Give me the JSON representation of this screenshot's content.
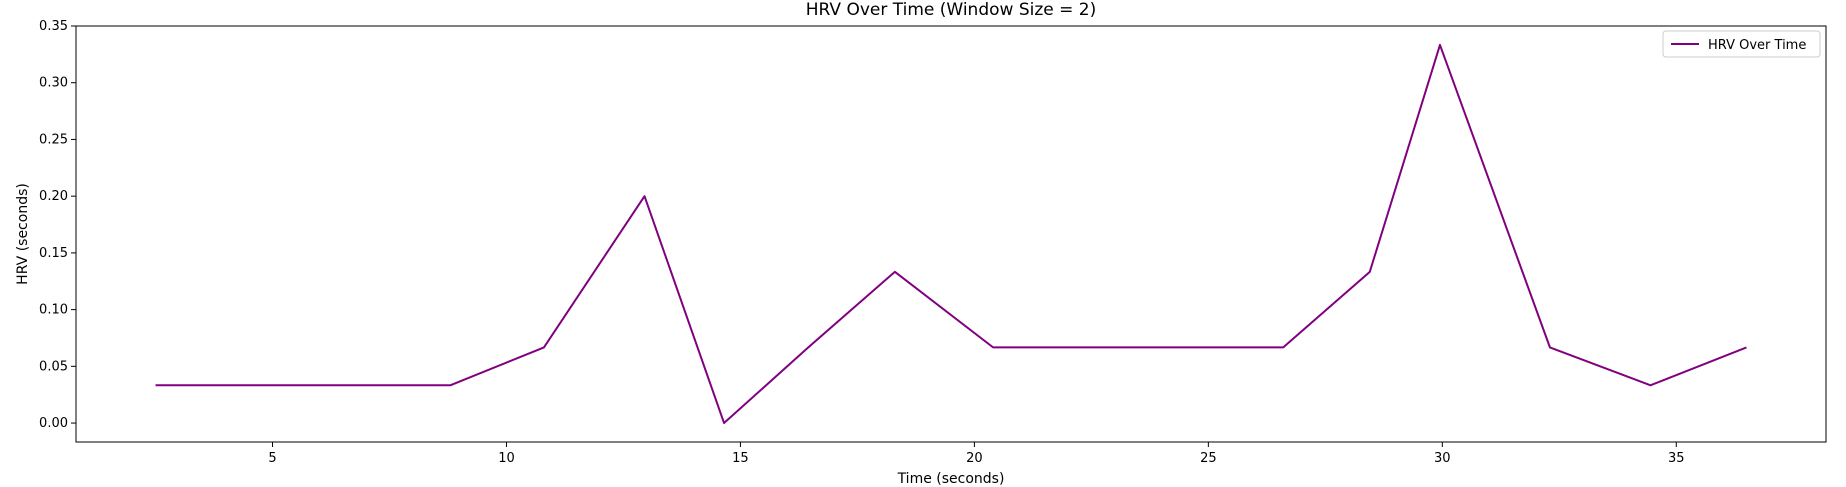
{
  "chart_data": {
    "type": "line",
    "title": "HRV Over Time (Window Size = 2)",
    "xlabel": "Time (seconds)",
    "ylabel": "HRV (seconds)",
    "xlim": [
      0.8,
      38.2
    ],
    "ylim": [
      -0.0167,
      0.35
    ],
    "xticks": [
      5,
      10,
      15,
      20,
      25,
      30,
      35
    ],
    "xtick_labels": [
      "5",
      "10",
      "15",
      "20",
      "25",
      "30",
      "35"
    ],
    "yticks": [
      0.0,
      0.05,
      0.1,
      0.15,
      0.2,
      0.25,
      0.3,
      0.35
    ],
    "ytick_labels": [
      "0.00",
      "0.05",
      "0.10",
      "0.15",
      "0.20",
      "0.25",
      "0.30",
      "0.35"
    ],
    "grid": false,
    "legend_position": "top-right",
    "series": [
      {
        "name": "HRV Over Time",
        "color": "#800080",
        "x": [
          2.5,
          8.8,
          10.8,
          12.95,
          14.65,
          16.45,
          18.3,
          20.4,
          26.6,
          28.45,
          29.95,
          32.3,
          34.45,
          36.5
        ],
        "values": [
          0.0333,
          0.0333,
          0.0667,
          0.2,
          0.0,
          0.0667,
          0.1333,
          0.0667,
          0.0667,
          0.1333,
          0.3333,
          0.0667,
          0.0333,
          0.0667
        ]
      }
    ]
  }
}
